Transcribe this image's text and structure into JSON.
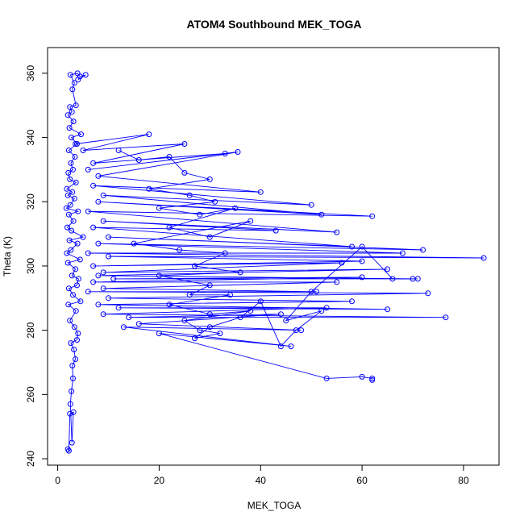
{
  "chart_data": {
    "type": "line",
    "title": "ATOM4 Southbound MEK_TOGA",
    "xlabel": "MEK_TOGA",
    "ylabel": "Theta (K)",
    "xlim": [
      -2,
      87
    ],
    "ylim": [
      238,
      368
    ],
    "xticks": [
      0,
      20,
      40,
      60,
      80
    ],
    "yticks": [
      240,
      260,
      280,
      300,
      320,
      340,
      360
    ],
    "grid": false,
    "legend": "none",
    "series_color": "#0000ff",
    "marker": "open-circle",
    "series": [
      {
        "values": [
          [
            2,
            243
          ],
          [
            2.2,
            242.5
          ],
          [
            2.4,
            254
          ],
          [
            3.1,
            254.5
          ],
          [
            2.8,
            245
          ],
          [
            2.5,
            257
          ],
          [
            2.7,
            261
          ],
          [
            3.0,
            265
          ],
          [
            2.9,
            269
          ],
          [
            3.5,
            271
          ],
          [
            3.2,
            274
          ],
          [
            2.6,
            276
          ],
          [
            3.8,
            277
          ],
          [
            4.0,
            279
          ],
          [
            3.3,
            281
          ],
          [
            2.4,
            283
          ],
          [
            3.6,
            286
          ],
          [
            2.1,
            288
          ],
          [
            4.5,
            289
          ],
          [
            3.0,
            291
          ],
          [
            2.2,
            293
          ],
          [
            3.8,
            294
          ],
          [
            4.1,
            296
          ],
          [
            2.8,
            297
          ],
          [
            3.5,
            299
          ],
          [
            2.0,
            301
          ],
          [
            4.4,
            302
          ],
          [
            1.8,
            304
          ],
          [
            2.6,
            305
          ],
          [
            3.9,
            307
          ],
          [
            2.3,
            308
          ],
          [
            5.0,
            309
          ],
          [
            2.7,
            311
          ],
          [
            1.9,
            312
          ],
          [
            3.1,
            314
          ],
          [
            2.2,
            316
          ],
          [
            4.0,
            317
          ],
          [
            1.7,
            318
          ],
          [
            2.5,
            319
          ],
          [
            3.3,
            321
          ],
          [
            2.0,
            322
          ],
          [
            2.9,
            323
          ],
          [
            1.8,
            324
          ],
          [
            3.6,
            326
          ],
          [
            2.4,
            327
          ],
          [
            2.1,
            329
          ],
          [
            3.0,
            330
          ],
          [
            2.6,
            332
          ],
          [
            3.4,
            334
          ],
          [
            2.2,
            336
          ],
          [
            3.8,
            338
          ],
          [
            2.7,
            340
          ],
          [
            4.6,
            341
          ],
          [
            2.3,
            343
          ],
          [
            3.1,
            345
          ],
          [
            2.0,
            347
          ],
          [
            2.8,
            348
          ],
          [
            2.4,
            349.5
          ],
          [
            3.6,
            350
          ],
          [
            2.9,
            355
          ],
          [
            3.3,
            357
          ],
          [
            2.5,
            359.5
          ],
          [
            3.9,
            360
          ],
          [
            4.4,
            359
          ],
          [
            5.5,
            359.5
          ],
          [
            4.0,
            358
          ]
        ]
      },
      {
        "values": [
          [
            3.5,
            338
          ],
          [
            18,
            341
          ],
          [
            5,
            336
          ],
          [
            25,
            338
          ],
          [
            7,
            332
          ],
          [
            33,
            335
          ],
          [
            6,
            330
          ],
          [
            35.5,
            335.5
          ],
          [
            8,
            328
          ],
          [
            40,
            323
          ],
          [
            7,
            325
          ],
          [
            50,
            319
          ],
          [
            9,
            322
          ],
          [
            52,
            316
          ],
          [
            8,
            320
          ],
          [
            62,
            315.5
          ],
          [
            6,
            317
          ],
          [
            55,
            310.5
          ],
          [
            9,
            314
          ],
          [
            43,
            311
          ],
          [
            7,
            312
          ],
          [
            58,
            306
          ],
          [
            10,
            309
          ],
          [
            72,
            305
          ],
          [
            8,
            307
          ],
          [
            68,
            304
          ],
          [
            6,
            304
          ],
          [
            84,
            302.5
          ],
          [
            10,
            303
          ],
          [
            60,
            301.5
          ],
          [
            7,
            300
          ],
          [
            56,
            301
          ],
          [
            9,
            298
          ],
          [
            65,
            299
          ],
          [
            8,
            297
          ],
          [
            71,
            296
          ],
          [
            11,
            296
          ],
          [
            60,
            296.5
          ],
          [
            7,
            295
          ],
          [
            55,
            295
          ],
          [
            9,
            293
          ],
          [
            51,
            292
          ],
          [
            6,
            292
          ],
          [
            73,
            291.5
          ],
          [
            10,
            290
          ],
          [
            58,
            289
          ],
          [
            8,
            288
          ],
          [
            65,
            286.5
          ],
          [
            12,
            287
          ],
          [
            53,
            287
          ],
          [
            9,
            285
          ],
          [
            76.5,
            284
          ],
          [
            14,
            284
          ],
          [
            44,
            285
          ],
          [
            16,
            282
          ],
          [
            48,
            280
          ],
          [
            13,
            281
          ],
          [
            46,
            275
          ],
          [
            20,
            279
          ],
          [
            53,
            265
          ],
          [
            60,
            265.5
          ],
          [
            62,
            265
          ],
          [
            62,
            264.5
          ]
        ]
      },
      {
        "values": [
          [
            12,
            336
          ],
          [
            16,
            333
          ],
          [
            22,
            334
          ],
          [
            25,
            329
          ],
          [
            30,
            327
          ],
          [
            18,
            324
          ],
          [
            26,
            322
          ],
          [
            31,
            320
          ],
          [
            20,
            318
          ],
          [
            28,
            316
          ],
          [
            35,
            318
          ],
          [
            22,
            312
          ],
          [
            30,
            309
          ],
          [
            38,
            314
          ],
          [
            15,
            307
          ],
          [
            24,
            305
          ],
          [
            33,
            304
          ],
          [
            27,
            300
          ],
          [
            36,
            298
          ],
          [
            20,
            297
          ],
          [
            30,
            294
          ],
          [
            26,
            291
          ],
          [
            34,
            291
          ],
          [
            22,
            288
          ],
          [
            30,
            285
          ],
          [
            38,
            286
          ],
          [
            25,
            283
          ],
          [
            28,
            280
          ],
          [
            32,
            279
          ],
          [
            27,
            277.5
          ],
          [
            30,
            281
          ],
          [
            36,
            284
          ],
          [
            40,
            289
          ],
          [
            44,
            275
          ],
          [
            47,
            280
          ],
          [
            52,
            286
          ],
          [
            45,
            283
          ],
          [
            50,
            292
          ],
          [
            60,
            306
          ],
          [
            66,
            296
          ],
          [
            70,
            296
          ]
        ]
      }
    ]
  }
}
